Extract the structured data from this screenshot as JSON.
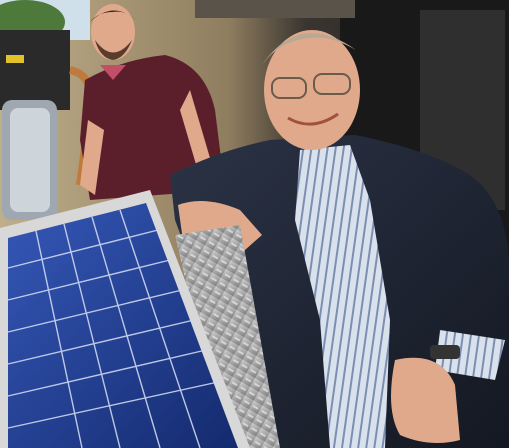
{
  "photo": {
    "subject": "two-men-with-solar-panel",
    "colors": {
      "sky": "#cfe0ea",
      "foliage": "#4d7a3a",
      "wall": "#c9b58f",
      "dark_wall": "#2a2a2a",
      "shirt": "#5b1f2b",
      "suit": "#1e2433",
      "stripe_shirt": "#c9d3e0",
      "skin": "#e0a98b",
      "panel_frame": "#d8d8d8",
      "cell_blue": "#1f3f95",
      "diamond_plate": "#a7a7a7",
      "copper": "#c07a3e"
    }
  }
}
